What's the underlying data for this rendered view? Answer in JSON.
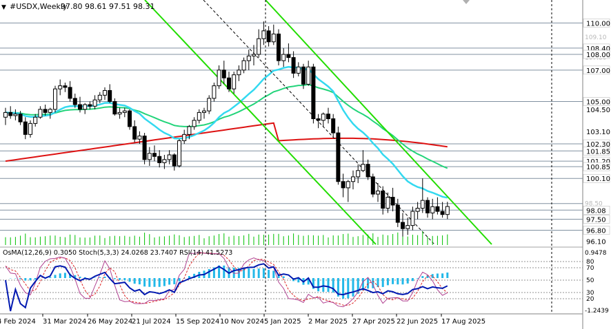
{
  "header": {
    "symbol": "#USDX,Weekly",
    "ohlc": "97.80 98.61 97.51 98.31"
  },
  "indicator_label": "OsMA(12,26,9) 0.3050  Stoch(5,3,3) 24.0268 23.7407  RSI(14) 41.5273",
  "colors": {
    "background": "#ffffff",
    "candle": "#000000",
    "ma_fast": "#33d9f0",
    "ma_mid": "#22d47a",
    "ma_slow": "#dd1111",
    "channel": "#22dd00",
    "volume": "#00c000",
    "osma": "#22b8e8",
    "rsi": "#0018b0",
    "stoch_main": "#b04090",
    "stoch_signal": "#dd2222",
    "level_line": "#8090a0"
  },
  "chart_data": {
    "type": "candlestick",
    "timeframe": "Weekly",
    "y_ticks": [
      "110.00",
      "108.40",
      "108.00",
      "107.00",
      "105.00",
      "104.50",
      "103.10",
      "102.30",
      "101.85",
      "101.20",
      "100.85",
      "100.10",
      "98.08",
      "97.50",
      "96.80",
      "96.10"
    ],
    "faint_ticks": [
      "109.10",
      "107.80",
      "98.50"
    ],
    "x_ticks": [
      "4 Feb 2024",
      "31 Mar 2024",
      "26 May 2024",
      "21 Jul 2024",
      "15 Sep 2024",
      "10 Nov 2024",
      "5 Jan 2025",
      "2 Mar 2025",
      "27 Apr 2025",
      "22 Jun 2025",
      "17 Aug 2025"
    ],
    "y_range": [
      95.9,
      110.5
    ],
    "horizontal_levels": [
      110.0,
      108.4,
      108.0,
      107.0,
      105.0,
      102.3,
      101.85,
      101.2,
      100.85,
      100.1,
      98.5,
      98.08,
      97.5,
      96.8
    ],
    "candles": [
      [
        104.0,
        104.6,
        103.5,
        104.3
      ],
      [
        104.3,
        104.7,
        103.9,
        104.1
      ],
      [
        104.1,
        104.5,
        103.8,
        104.2
      ],
      [
        104.2,
        104.4,
        103.5,
        103.7
      ],
      [
        103.7,
        104.0,
        102.6,
        102.9
      ],
      [
        102.9,
        103.8,
        102.7,
        103.6
      ],
      [
        103.6,
        104.2,
        103.4,
        104.0
      ],
      [
        104.0,
        104.7,
        103.9,
        104.5
      ],
      [
        104.5,
        104.8,
        104.1,
        104.3
      ],
      [
        104.3,
        104.6,
        103.9,
        104.5
      ],
      [
        104.5,
        106.0,
        104.3,
        105.8
      ],
      [
        105.8,
        106.4,
        105.4,
        106.0
      ],
      [
        106.0,
        106.2,
        105.6,
        105.9
      ],
      [
        105.9,
        106.3,
        105.0,
        105.2
      ],
      [
        105.2,
        105.5,
        104.6,
        104.8
      ],
      [
        104.8,
        105.3,
        104.3,
        104.5
      ],
      [
        104.5,
        104.9,
        104.2,
        104.8
      ],
      [
        104.8,
        105.0,
        104.5,
        104.7
      ],
      [
        104.7,
        105.4,
        104.5,
        105.1
      ],
      [
        105.1,
        105.6,
        104.9,
        105.4
      ],
      [
        105.4,
        105.9,
        105.1,
        105.7
      ],
      [
        105.7,
        106.1,
        104.9,
        105.0
      ],
      [
        105.0,
        105.2,
        104.1,
        104.2
      ],
      [
        104.2,
        104.6,
        103.9,
        104.3
      ],
      [
        104.3,
        104.6,
        104.0,
        104.4
      ],
      [
        104.4,
        104.5,
        103.2,
        103.4
      ],
      [
        103.4,
        103.8,
        102.4,
        102.6
      ],
      [
        102.6,
        103.1,
        102.3,
        102.8
      ],
      [
        102.8,
        103.0,
        101.0,
        101.3
      ],
      [
        101.3,
        102.1,
        100.9,
        101.7
      ],
      [
        101.7,
        102.2,
        101.2,
        101.5
      ],
      [
        101.5,
        101.9,
        100.8,
        101.1
      ],
      [
        101.1,
        101.6,
        100.7,
        101.3
      ],
      [
        101.3,
        101.9,
        101.0,
        101.6
      ],
      [
        101.6,
        101.7,
        100.6,
        100.9
      ],
      [
        100.9,
        102.6,
        100.8,
        102.5
      ],
      [
        102.5,
        103.2,
        102.3,
        102.9
      ],
      [
        102.9,
        103.5,
        102.6,
        103.4
      ],
      [
        103.4,
        104.0,
        103.2,
        103.8
      ],
      [
        103.8,
        104.5,
        103.6,
        104.3
      ],
      [
        104.3,
        104.6,
        103.9,
        104.4
      ],
      [
        104.4,
        105.4,
        104.2,
        105.2
      ],
      [
        105.2,
        106.2,
        105.0,
        106.0
      ],
      [
        106.0,
        107.3,
        105.8,
        107.0
      ],
      [
        107.0,
        107.6,
        106.1,
        106.5
      ],
      [
        106.5,
        106.9,
        105.6,
        105.8
      ],
      [
        105.8,
        106.9,
        105.5,
        106.7
      ],
      [
        106.7,
        107.3,
        106.3,
        107.0
      ],
      [
        107.0,
        107.8,
        106.8,
        107.6
      ],
      [
        107.6,
        108.3,
        107.0,
        107.9
      ],
      [
        107.9,
        108.6,
        107.3,
        108.0
      ],
      [
        108.0,
        109.6,
        107.8,
        109.0
      ],
      [
        109.0,
        110.1,
        108.6,
        109.5
      ],
      [
        109.5,
        109.8,
        108.5,
        108.8
      ],
      [
        108.8,
        109.9,
        108.6,
        109.3
      ],
      [
        109.3,
        109.6,
        107.3,
        107.6
      ],
      [
        107.6,
        108.4,
        107.2,
        108.0
      ],
      [
        108.0,
        108.7,
        107.5,
        107.8
      ],
      [
        107.8,
        108.2,
        106.5,
        106.8
      ],
      [
        106.8,
        107.5,
        106.6,
        107.2
      ],
      [
        107.2,
        107.4,
        105.8,
        106.1
      ],
      [
        106.1,
        107.6,
        106.0,
        107.2
      ],
      [
        107.2,
        107.4,
        103.6,
        103.9
      ],
      [
        103.9,
        104.2,
        103.3,
        103.8
      ],
      [
        103.8,
        104.3,
        103.4,
        104.2
      ],
      [
        104.2,
        104.6,
        103.6,
        103.9
      ],
      [
        103.9,
        104.2,
        102.7,
        103.0
      ],
      [
        103.0,
        103.4,
        99.7,
        99.9
      ],
      [
        99.9,
        100.4,
        98.9,
        99.5
      ],
      [
        99.5,
        100.0,
        98.6,
        99.9
      ],
      [
        99.9,
        100.6,
        99.4,
        100.2
      ],
      [
        100.2,
        101.0,
        99.8,
        100.6
      ],
      [
        100.6,
        101.9,
        100.5,
        101.0
      ],
      [
        101.0,
        101.3,
        100.0,
        100.2
      ],
      [
        100.2,
        100.4,
        98.9,
        99.1
      ],
      [
        99.1,
        99.8,
        98.6,
        99.3
      ],
      [
        99.3,
        99.6,
        97.8,
        98.2
      ],
      [
        98.2,
        99.2,
        97.9,
        98.9
      ],
      [
        98.9,
        99.5,
        98.0,
        98.4
      ],
      [
        98.4,
        98.8,
        97.0,
        97.3
      ],
      [
        97.3,
        97.9,
        96.4,
        96.9
      ],
      [
        96.9,
        97.6,
        96.5,
        97.1
      ],
      [
        97.1,
        98.3,
        96.8,
        98.0
      ],
      [
        98.0,
        98.6,
        97.5,
        98.2
      ],
      [
        98.2,
        100.1,
        97.9,
        98.7
      ],
      [
        98.7,
        98.9,
        97.6,
        97.9
      ],
      [
        97.9,
        98.8,
        97.5,
        98.3
      ],
      [
        98.3,
        98.9,
        97.8,
        98.0
      ],
      [
        98.0,
        98.6,
        97.6,
        97.8
      ],
      [
        97.8,
        98.61,
        97.51,
        98.31
      ]
    ]
  }
}
